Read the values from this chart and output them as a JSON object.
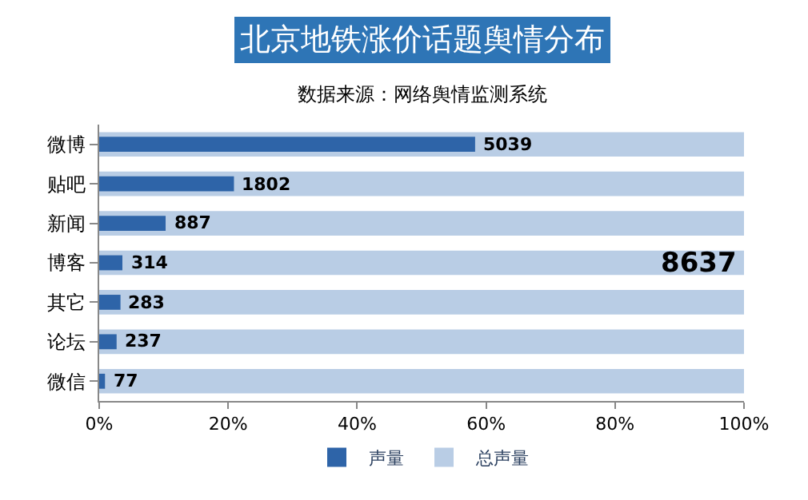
{
  "chart_data": {
    "type": "bar",
    "orientation": "horizontal",
    "title": "北京地铁涨价话题舆情分布",
    "subtitle": "数据来源：网络舆情监测系统",
    "categories": [
      "微博",
      "贴吧",
      "新闻",
      "博客",
      "其它",
      "论坛",
      "微信"
    ],
    "series": [
      {
        "name": "声量",
        "color": "#2e64a8",
        "values": [
          58.3,
          20.9,
          10.3,
          3.6,
          3.3,
          2.7,
          0.9
        ]
      },
      {
        "name": "总声量",
        "color": "#b9cde5",
        "values": [
          100,
          100,
          100,
          100,
          100,
          100,
          100
        ]
      }
    ],
    "xlim": [
      0,
      100
    ],
    "xticks": [
      {
        "value": 0,
        "label": "0%"
      },
      {
        "value": 20,
        "label": "20%"
      },
      {
        "value": 40,
        "label": "40%"
      },
      {
        "value": 60,
        "label": "60%"
      },
      {
        "value": 80,
        "label": "80%"
      },
      {
        "value": 100,
        "label": "100%"
      }
    ],
    "annotations": [
      {
        "text": "5039",
        "x": 58.3,
        "y": "微博"
      },
      {
        "text": "1802",
        "x": 20.9,
        "y": "贴吧"
      },
      {
        "text": "887",
        "x": 10.3,
        "y": "新闻"
      },
      {
        "text": "314",
        "x": 3.6,
        "y": "博客"
      },
      {
        "text": "283",
        "x": 3.3,
        "y": "其它"
      },
      {
        "text": "237",
        "x": 2.7,
        "y": "论坛"
      },
      {
        "text": "77",
        "x": 0.9,
        "y": "微信"
      },
      {
        "text": "8637",
        "x": 100,
        "y": "博客"
      }
    ],
    "legend": "bottom"
  }
}
